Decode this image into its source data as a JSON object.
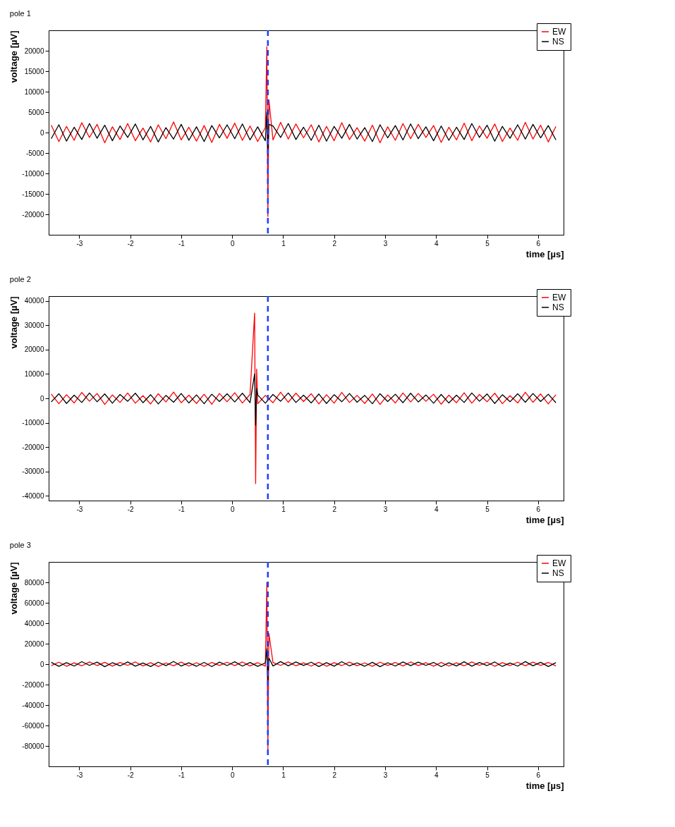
{
  "chart_data": [
    {
      "type": "line",
      "title": "pole 1",
      "xlabel": "time [µs]",
      "ylabel": "voltage [µV]",
      "legend": "top right",
      "grid": false,
      "marker": "none",
      "line_style": "solid",
      "xlim": [
        -3.6,
        6.5
      ],
      "xticks": [
        -3,
        -2,
        -1,
        0,
        1,
        2,
        3,
        4,
        5,
        6
      ],
      "ylim": [
        -25000,
        25000
      ],
      "yticks": [
        -20000,
        -15000,
        -10000,
        -5000,
        0,
        5000,
        10000,
        15000,
        20000
      ],
      "x": [
        -3.55,
        -3.4,
        -3.25,
        -3.1,
        -2.95,
        -2.8,
        -2.65,
        -2.5,
        -2.35,
        -2.2,
        -2.05,
        -1.9,
        -1.75,
        -1.6,
        -1.45,
        -1.3,
        -1.15,
        -1,
        -0.85,
        -0.7,
        -0.55,
        -0.4,
        -0.25,
        -0.1,
        0.05,
        0.2,
        0.35,
        0.5,
        0.65,
        0.68,
        0.7,
        0.72,
        0.8,
        0.95,
        1.1,
        1.25,
        1.4,
        1.55,
        1.7,
        1.85,
        2,
        2.15,
        2.3,
        2.45,
        2.6,
        2.75,
        2.9,
        3.05,
        3.2,
        3.35,
        3.5,
        3.65,
        3.8,
        3.95,
        4.1,
        4.25,
        4.4,
        4.55,
        4.7,
        4.85,
        5,
        5.15,
        5.3,
        5.45,
        5.6,
        5.75,
        5.9,
        6.05,
        6.2,
        6.35
      ],
      "series": [
        {
          "name": "EW",
          "color": "#ff0000",
          "values": [
            1800,
            -2200,
            1500,
            -1900,
            2400,
            -1200,
            2000,
            -2500,
            1400,
            -1700,
            2200,
            -2000,
            1100,
            -2300,
            1900,
            -1500,
            2600,
            -1800,
            1300,
            -2100,
            1700,
            -2400,
            2000,
            -1400,
            2300,
            -1900,
            1600,
            -2200,
            1200,
            21000,
            -20500,
            8000,
            -1800,
            2500,
            -1600,
            2100,
            -1300,
            1900,
            -2300,
            1500,
            -2000,
            2400,
            -1700,
            1200,
            -2100,
            1800,
            -2500,
            1400,
            -1900,
            2200,
            -1500,
            2000,
            -1200,
            1700,
            -2400,
            1300,
            -1800,
            2300,
            -2000,
            1600,
            -1400,
            2100,
            -2200,
            1100,
            -1900,
            2500,
            -1600,
            1800,
            -2300,
            1500
          ]
        },
        {
          "name": "NS",
          "color": "#000000",
          "values": [
            -1500,
            1900,
            -2100,
            1300,
            -1700,
            2200,
            -1400,
            1800,
            -2000,
            1600,
            -1200,
            2100,
            -1800,
            1500,
            -2300,
            1200,
            -1600,
            2000,
            -1900,
            1400,
            -2200,
            1700,
            -1300,
            1900,
            -1500,
            2100,
            -1800,
            1400,
            -2000,
            5000,
            -5500,
            2000,
            1600,
            -1200,
            2200,
            -1700,
            1300,
            -1900,
            1800,
            -2100,
            1500,
            -1400,
            2000,
            -1600,
            1200,
            -2200,
            1900,
            -1300,
            1700,
            -1800,
            2100,
            -1500,
            1400,
            -2000,
            1600,
            -1900,
            1300,
            -1700,
            2200,
            -1200,
            1800,
            -2100,
            1500,
            -1400,
            1900,
            -1600,
            2000,
            -1300,
            1700,
            -1800
          ]
        }
      ],
      "ref_lines": [
        {
          "axis": "x",
          "value": 0.7,
          "color": "#1f3fff",
          "line_style": "dashed"
        }
      ]
    },
    {
      "type": "line",
      "title": "pole 2",
      "xlabel": "time [µs]",
      "ylabel": "voltage [µV]",
      "legend": "top right",
      "grid": false,
      "marker": "none",
      "line_style": "solid",
      "xlim": [
        -3.6,
        6.5
      ],
      "xticks": [
        -3,
        -2,
        -1,
        0,
        1,
        2,
        3,
        4,
        5,
        6
      ],
      "ylim": [
        -42000,
        42000
      ],
      "yticks": [
        -40000,
        -30000,
        -20000,
        -10000,
        0,
        10000,
        20000,
        30000,
        40000
      ],
      "x": [
        -3.55,
        -3.4,
        -3.25,
        -3.1,
        -2.95,
        -2.8,
        -2.65,
        -2.5,
        -2.35,
        -2.2,
        -2.05,
        -1.9,
        -1.75,
        -1.6,
        -1.45,
        -1.3,
        -1.15,
        -1,
        -0.85,
        -0.7,
        -0.55,
        -0.4,
        -0.25,
        -0.1,
        0.05,
        0.2,
        0.35,
        0.44,
        0.46,
        0.48,
        0.5,
        0.65,
        0.8,
        0.95,
        1.1,
        1.25,
        1.4,
        1.55,
        1.7,
        1.85,
        2,
        2.15,
        2.3,
        2.45,
        2.6,
        2.75,
        2.9,
        3.05,
        3.2,
        3.35,
        3.5,
        3.65,
        3.8,
        3.95,
        4.1,
        4.25,
        4.4,
        4.55,
        4.7,
        4.85,
        5,
        5.15,
        5.3,
        5.45,
        5.6,
        5.75,
        5.9,
        6.05,
        6.2,
        6.35
      ],
      "series": [
        {
          "name": "EW",
          "color": "#ff0000",
          "values": [
            1800,
            -2200,
            1500,
            -1900,
            2400,
            -1200,
            2000,
            -2500,
            1400,
            -1700,
            2200,
            -2000,
            1100,
            -2300,
            1900,
            -1500,
            2600,
            -1800,
            1300,
            -2100,
            1700,
            -2400,
            2000,
            -1400,
            2300,
            -1900,
            1600,
            35000,
            -35000,
            12000,
            -2200,
            1200,
            -1800,
            2500,
            -1600,
            2100,
            -1300,
            1900,
            -2300,
            1500,
            -2000,
            2400,
            -1700,
            1200,
            -2100,
            1800,
            -2500,
            1400,
            -1900,
            2200,
            -1500,
            2000,
            -1200,
            1700,
            -2400,
            1300,
            -1800,
            2300,
            -2000,
            1600,
            -1400,
            2100,
            -2200,
            1100,
            -1900,
            2500,
            -1600,
            1800,
            -2300,
            1500
          ]
        },
        {
          "name": "NS",
          "color": "#000000",
          "values": [
            -1500,
            1900,
            -2100,
            1300,
            -1700,
            2200,
            -1400,
            1800,
            -2000,
            1600,
            -1200,
            2100,
            -1800,
            1500,
            -2300,
            1200,
            -1600,
            2000,
            -1900,
            1400,
            -2200,
            1700,
            -1300,
            1900,
            -1500,
            2100,
            -1800,
            10000,
            -11000,
            4000,
            1400,
            -2000,
            1600,
            -1200,
            2200,
            -1700,
            1300,
            -1900,
            1800,
            -2100,
            1500,
            -1400,
            2000,
            -1600,
            1200,
            -2200,
            1900,
            -1300,
            1700,
            -1800,
            2100,
            -1500,
            1400,
            -2000,
            1600,
            -1900,
            1300,
            -1700,
            2200,
            -1200,
            1800,
            -2100,
            1500,
            -1400,
            1900,
            -1600,
            2000,
            -1300,
            1700,
            -1800
          ]
        }
      ],
      "ref_lines": [
        {
          "axis": "x",
          "value": 0.7,
          "color": "#1f3fff",
          "line_style": "dashed"
        }
      ]
    },
    {
      "type": "line",
      "title": "pole 3",
      "xlabel": "time [µs]",
      "ylabel": "voltage [µV]",
      "legend": "top right",
      "grid": false,
      "marker": "none",
      "line_style": "solid",
      "xlim": [
        -3.6,
        6.5
      ],
      "xticks": [
        -3,
        -2,
        -1,
        0,
        1,
        2,
        3,
        4,
        5,
        6
      ],
      "ylim": [
        -100000,
        100000
      ],
      "yticks": [
        -80000,
        -60000,
        -40000,
        -20000,
        0,
        20000,
        40000,
        60000,
        80000
      ],
      "x": [
        -3.55,
        -3.4,
        -3.25,
        -3.1,
        -2.95,
        -2.8,
        -2.65,
        -2.5,
        -2.35,
        -2.2,
        -2.05,
        -1.9,
        -1.75,
        -1.6,
        -1.45,
        -1.3,
        -1.15,
        -1,
        -0.85,
        -0.7,
        -0.55,
        -0.4,
        -0.25,
        -0.1,
        0.05,
        0.2,
        0.35,
        0.5,
        0.65,
        0.68,
        0.7,
        0.72,
        0.8,
        0.95,
        1.1,
        1.25,
        1.4,
        1.55,
        1.7,
        1.85,
        2,
        2.15,
        2.3,
        2.45,
        2.6,
        2.75,
        2.9,
        3.05,
        3.2,
        3.35,
        3.5,
        3.65,
        3.8,
        3.95,
        4.1,
        4.25,
        4.4,
        4.55,
        4.7,
        4.85,
        5,
        5.15,
        5.3,
        5.45,
        5.6,
        5.75,
        5.9,
        6.05,
        6.2,
        6.35
      ],
      "series": [
        {
          "name": "EW",
          "color": "#ff0000",
          "values": [
            -1500,
            1900,
            -2100,
            1300,
            -1700,
            2200,
            -1400,
            1800,
            -2000,
            1600,
            -1200,
            2100,
            -1800,
            1500,
            -2300,
            1200,
            -1600,
            2000,
            -1900,
            1400,
            -2200,
            1700,
            -1300,
            1900,
            -1500,
            2100,
            -1800,
            1400,
            -2000,
            80000,
            -85000,
            30000,
            1600,
            -1200,
            2200,
            -1700,
            1300,
            -1900,
            1800,
            -2100,
            1500,
            -1400,
            2000,
            -1600,
            1200,
            -2200,
            1900,
            -1300,
            1700,
            -1800,
            2100,
            -1500,
            1400,
            -2000,
            1600,
            -1900,
            1300,
            -1700,
            2200,
            -1200,
            1800,
            -2100,
            1500,
            -1400,
            1900,
            -1600,
            2000,
            -1300,
            1700,
            -1800
          ]
        },
        {
          "name": "NS",
          "color": "#000000",
          "values": [
            1800,
            -2200,
            1500,
            -1900,
            2400,
            -1200,
            2000,
            -2500,
            1400,
            -1700,
            2200,
            -2000,
            1100,
            -2300,
            1900,
            -1500,
            2600,
            -1800,
            1300,
            -2100,
            1700,
            -2400,
            2000,
            -1400,
            2300,
            -1900,
            1600,
            -2200,
            1200,
            15000,
            -16000,
            6000,
            -1800,
            2500,
            -1600,
            2100,
            -1300,
            1900,
            -2300,
            1500,
            -2000,
            2400,
            -1700,
            1200,
            -2100,
            1800,
            -2500,
            1400,
            -1900,
            2200,
            -1500,
            2000,
            -1200,
            1700,
            -2400,
            1300,
            -1800,
            2300,
            -2000,
            1600,
            -1400,
            2100,
            -2200,
            1100,
            -1900,
            2500,
            -1600,
            1800,
            -2300,
            1500
          ]
        }
      ],
      "ref_lines": [
        {
          "axis": "x",
          "value": 0.7,
          "color": "#1f3fff",
          "line_style": "dashed"
        }
      ]
    }
  ]
}
